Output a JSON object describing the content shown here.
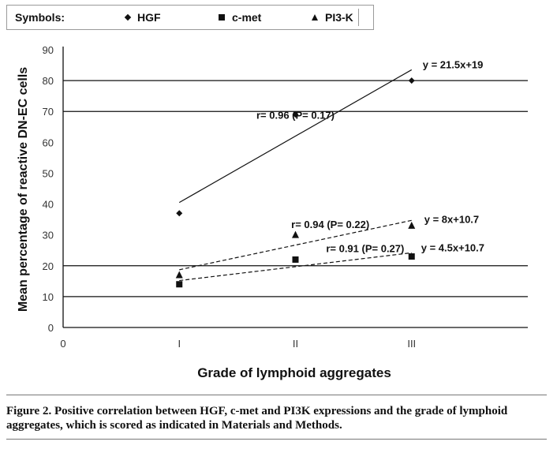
{
  "legend": {
    "title": "Symbols:",
    "items": [
      {
        "label": "HGF",
        "icon": "diamond-icon"
      },
      {
        "label": "c-met",
        "icon": "square-icon"
      },
      {
        "label": "PI3-K",
        "icon": "triangle-icon"
      }
    ]
  },
  "chart_data": {
    "type": "scatter",
    "ylabel": "Mean percentage of reactive DN-EC cells",
    "xlabel": "Grade of lymphoid aggregates",
    "x_ticks": [
      "0",
      "I",
      "II",
      "III"
    ],
    "y_ticks": [
      "0",
      "10",
      "20",
      "30",
      "40",
      "50",
      "60",
      "70",
      "80",
      "90"
    ],
    "xlim": [
      0,
      4
    ],
    "ylim": [
      0,
      90
    ],
    "grid": "horizontal lines at 10, 20, 70, 80",
    "series": [
      {
        "name": "HGF",
        "marker": "diamond",
        "x": [
          1,
          2,
          3
        ],
        "y": [
          37,
          69,
          80
        ],
        "trend": {
          "slope": 21.5,
          "intercept": 19,
          "equation": "y = 21.5x+19",
          "annotation": "r= 0.96 (P= 0.17)"
        }
      },
      {
        "name": "c-met",
        "marker": "square",
        "x": [
          1,
          2,
          3
        ],
        "y": [
          14,
          22,
          23
        ],
        "trend": {
          "slope": 4.5,
          "intercept": 10.7,
          "equation": "y = 4.5x+10.7",
          "annotation": "r= 0.91 (P= 0.27)"
        }
      },
      {
        "name": "PI3-K",
        "marker": "triangle",
        "x": [
          1,
          2,
          3
        ],
        "y": [
          17,
          30,
          33
        ],
        "trend": {
          "slope": 8,
          "intercept": 10.7,
          "equation": "y = 8x+10.7",
          "annotation": "r= 0.94 (P= 0.22)"
        }
      }
    ]
  },
  "caption": "Figure 2. Positive correlation between HGF, c-met and PI3K expressions and the grade of lymphoid aggregates, which is scored as indicated in Materials and Methods."
}
